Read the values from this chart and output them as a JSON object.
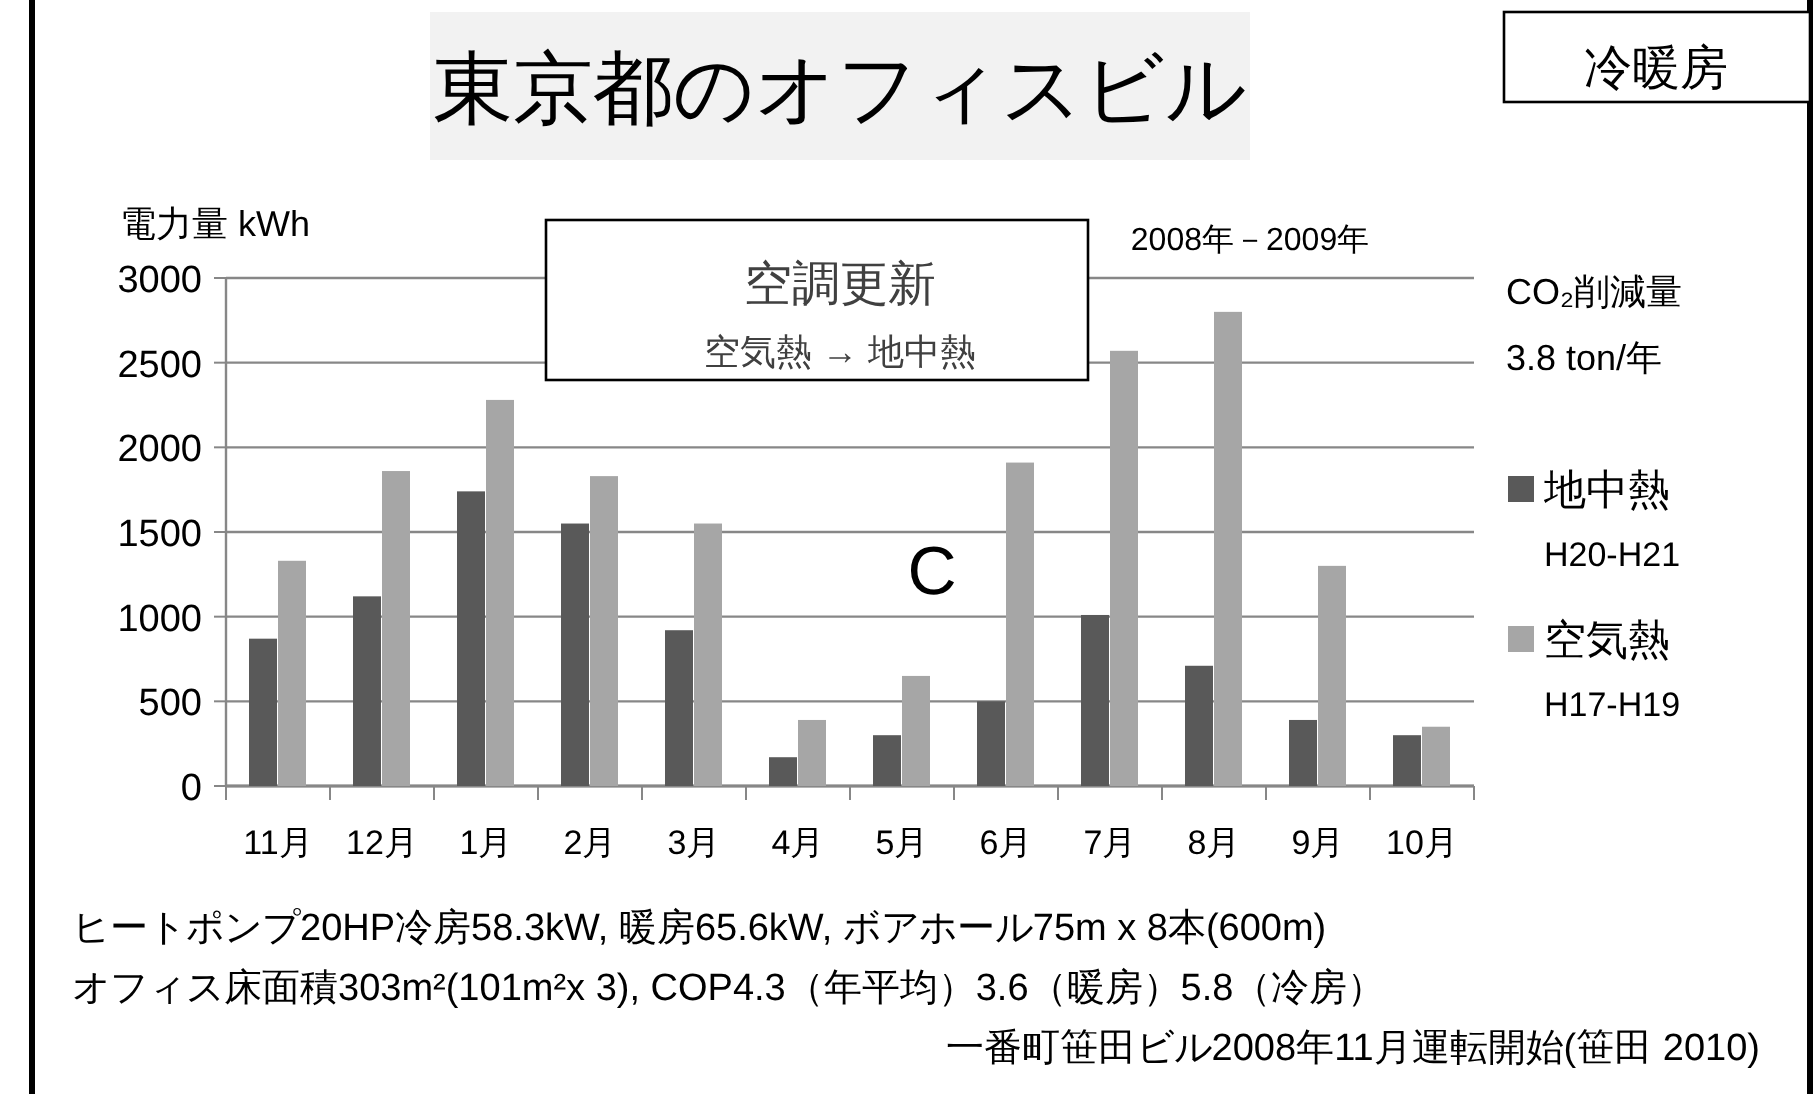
{
  "chart_data": {
    "type": "bar",
    "title": "東京都のオフィスビル",
    "ylabel": "電力量  kWh",
    "categories": [
      "11月",
      "12月",
      "1月",
      "2月",
      "3月",
      "4月",
      "5月",
      "6月",
      "7月",
      "8月",
      "9月",
      "10月"
    ],
    "series": [
      {
        "name": "地中熱 H20-H21",
        "color": "#595959",
        "values": [
          870,
          1120,
          1740,
          1550,
          920,
          170,
          300,
          500,
          1010,
          710,
          390,
          300
        ]
      },
      {
        "name": "空気熱 H17-H19",
        "color": "#a6a6a6",
        "values": [
          1330,
          1860,
          2280,
          1830,
          1550,
          390,
          650,
          1910,
          2570,
          2800,
          1300,
          350
        ]
      }
    ],
    "ylim": [
      0,
      3000
    ],
    "yticks": [
      0,
      500,
      1000,
      1500,
      2000,
      2500,
      3000
    ],
    "grid": "y",
    "legend": "right",
    "annotations": [
      "冷暖房",
      "空調更新",
      "空気熱 → 地中熱",
      "2008年－2009年",
      "CO₂削減量",
      "3.8 ton/年",
      "C",
      "ヒートポンプ20HP冷房58.3kW, 暖房65.6kW,  ボアホール75m x 8本(600m)",
      "オフィス床面積303m²(101m²x 3),  COP4.3（年平均）3.6（暖房）5.8（冷房）",
      "一番町笹田ビル2008年11月運転開始(笹田  2010)"
    ]
  }
}
